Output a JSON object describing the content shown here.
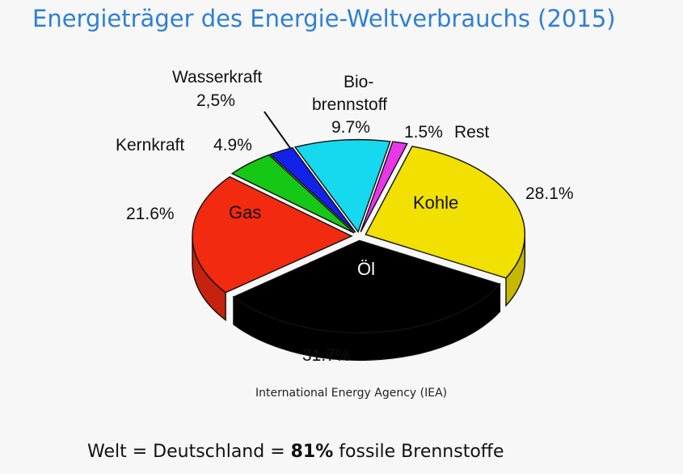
{
  "title": "Energieträger des Energie-Weltverbrauchs (2015)",
  "source": "International Energy Agency (IEA)",
  "footer": {
    "prefix": "Welt = Deutschland = ",
    "highlight": "81%",
    "suffix": " fossile Brennstoffe"
  },
  "chart_data": {
    "type": "pie",
    "title": "Energieträger des Energie-Weltverbrauchs (2015)",
    "slices": [
      {
        "name": "Kohle",
        "value": 28.1,
        "percent_label": "28.1%",
        "color": "#f2e000"
      },
      {
        "name": "Öl",
        "value": 31.7,
        "percent_label": "31.7%",
        "color": "#000000"
      },
      {
        "name": "Gas",
        "value": 21.6,
        "percent_label": "21.6%",
        "color": "#f22a10"
      },
      {
        "name": "Kernkraft",
        "value": 4.9,
        "percent_label": "4.9%",
        "color": "#16c816"
      },
      {
        "name": "Wasserkraft",
        "value": 2.5,
        "percent_label": "2,5%",
        "color": "#1222e8"
      },
      {
        "name": "Bio-brennstoff",
        "name_lines": [
          "Bio-",
          "brennstoff"
        ],
        "value": 9.7,
        "percent_label": "9.7%",
        "color": "#16d8ee"
      },
      {
        "name": "Rest",
        "value": 1.5,
        "percent_label": "1.5%",
        "color": "#e836e8"
      }
    ],
    "style": "3d-exploded"
  }
}
